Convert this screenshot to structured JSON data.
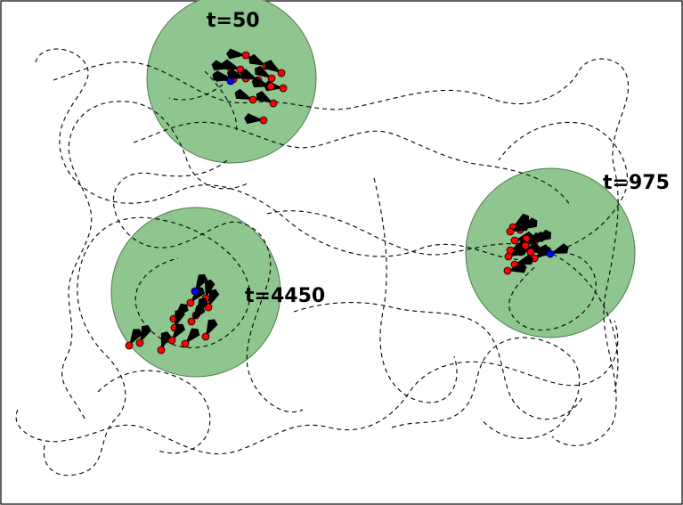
{
  "colors": {
    "zone_fill": "#8fc58f",
    "agent": "#ff0000",
    "leader": "#0000ff",
    "trail": "#000000"
  },
  "snapshots": [
    {
      "id": "t50",
      "label": "t=50",
      "followers": 14,
      "leaders": 1
    },
    {
      "id": "t975",
      "label": "t=975",
      "followers": 14,
      "leaders": 1
    },
    {
      "id": "t4450",
      "label": "t=4450",
      "followers": 13,
      "leaders": 1
    }
  ]
}
